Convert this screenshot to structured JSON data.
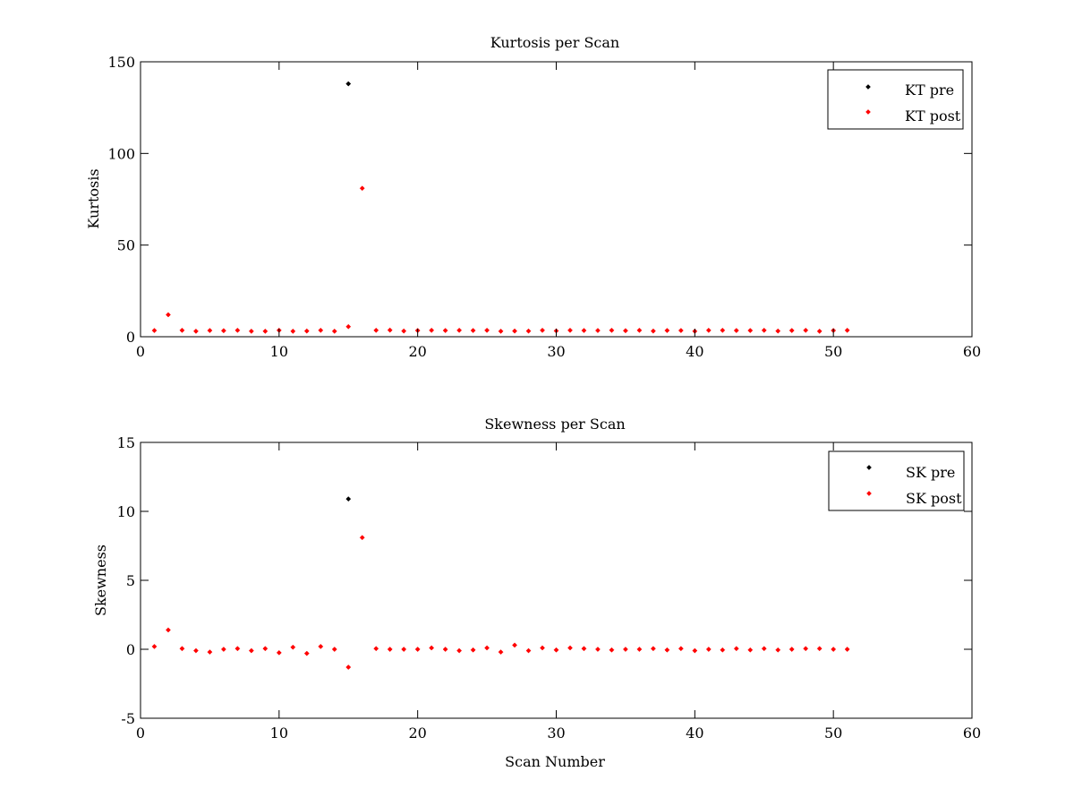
{
  "figure": {
    "background": "#ffffff"
  },
  "chart_data": [
    {
      "type": "scatter",
      "title": "Kurtosis per Scan",
      "xlabel": "",
      "ylabel": "Kurtosis",
      "xlim": [
        0,
        60
      ],
      "ylim": [
        0,
        150
      ],
      "xticks": [
        0,
        10,
        20,
        30,
        40,
        50,
        60
      ],
      "yticks": [
        0,
        50,
        100,
        150
      ],
      "legend_position": "top-right",
      "grid": false,
      "series": [
        {
          "name": "KT pre",
          "color": "#000000",
          "x": [
            15
          ],
          "y": [
            138
          ]
        },
        {
          "name": "KT post",
          "color": "#ff0000",
          "x": [
            1,
            2,
            3,
            4,
            5,
            6,
            7,
            8,
            9,
            10,
            11,
            12,
            13,
            14,
            15,
            16,
            17,
            18,
            19,
            20,
            21,
            22,
            23,
            24,
            25,
            26,
            27,
            28,
            29,
            30,
            31,
            32,
            33,
            34,
            35,
            36,
            37,
            38,
            39,
            40,
            41,
            42,
            43,
            44,
            45,
            46,
            47,
            48,
            49,
            50,
            51
          ],
          "y": [
            3.4,
            12.0,
            3.5,
            3.0,
            3.4,
            3.3,
            3.5,
            3.0,
            3.0,
            3.5,
            3.0,
            3.1,
            3.5,
            3.0,
            5.5,
            81,
            3.5,
            3.6,
            3.1,
            3.4,
            3.5,
            3.4,
            3.5,
            3.4,
            3.5,
            3.0,
            3.1,
            3.1,
            3.5,
            3.2,
            3.5,
            3.4,
            3.4,
            3.5,
            3.3,
            3.5,
            3.1,
            3.4,
            3.4,
            3.0,
            3.5,
            3.5,
            3.4,
            3.4,
            3.5,
            3.1,
            3.4,
            3.5,
            3.0,
            3.4,
            3.5
          ]
        }
      ]
    },
    {
      "type": "scatter",
      "title": "Skewness per Scan",
      "xlabel": "Scan Number",
      "ylabel": "Skewness",
      "xlim": [
        0,
        60
      ],
      "ylim": [
        -5,
        15
      ],
      "xticks": [
        0,
        10,
        20,
        30,
        40,
        50,
        60
      ],
      "yticks": [
        -5,
        0,
        5,
        10,
        15
      ],
      "legend_position": "top-right",
      "grid": false,
      "series": [
        {
          "name": "SK pre",
          "color": "#000000",
          "x": [
            15
          ],
          "y": [
            10.9
          ]
        },
        {
          "name": "SK post",
          "color": "#ff0000",
          "x": [
            1,
            2,
            3,
            4,
            5,
            6,
            7,
            8,
            9,
            10,
            11,
            12,
            13,
            14,
            15,
            16,
            17,
            18,
            19,
            20,
            21,
            22,
            23,
            24,
            25,
            26,
            27,
            28,
            29,
            30,
            31,
            32,
            33,
            34,
            35,
            36,
            37,
            38,
            39,
            40,
            41,
            42,
            43,
            44,
            45,
            46,
            47,
            48,
            49,
            50,
            51
          ],
          "y": [
            0.2,
            1.4,
            0.05,
            -0.1,
            -0.2,
            0.0,
            0.05,
            -0.1,
            0.05,
            -0.25,
            0.15,
            -0.3,
            0.2,
            0.0,
            -1.3,
            8.1,
            0.05,
            0.0,
            0.0,
            0.0,
            0.1,
            0.0,
            -0.1,
            -0.05,
            0.1,
            -0.2,
            0.3,
            -0.1,
            0.1,
            -0.05,
            0.1,
            0.05,
            0.0,
            -0.05,
            0.0,
            0.0,
            0.05,
            -0.05,
            0.05,
            -0.1,
            0.0,
            -0.05,
            0.05,
            -0.05,
            0.05,
            -0.05,
            0.0,
            0.05,
            0.05,
            0.0,
            0.0
          ]
        }
      ]
    }
  ]
}
